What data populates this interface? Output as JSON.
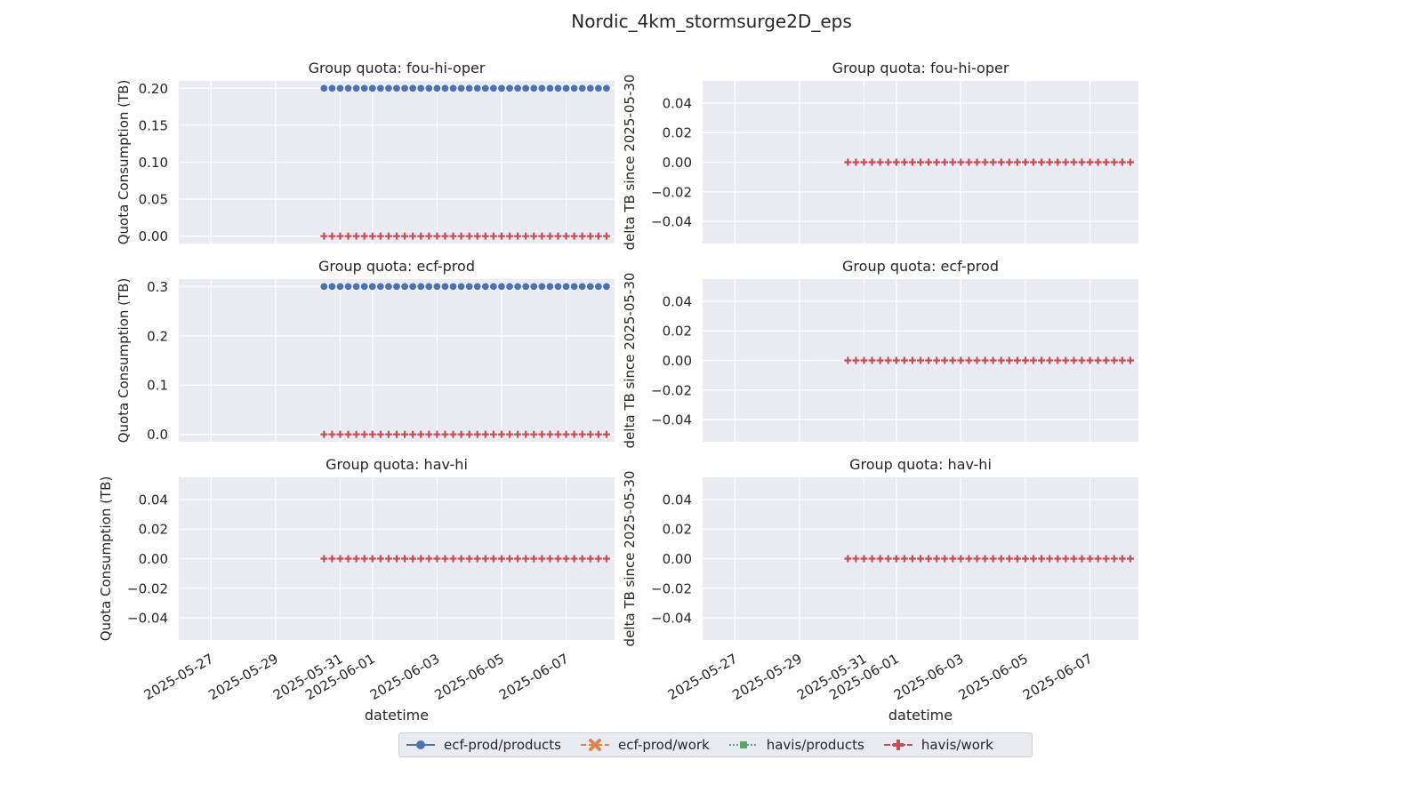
{
  "figure_title": "Nordic_4km_stormsurge2D_eps",
  "legend": {
    "items": [
      {
        "label": "ecf-prod/products",
        "color": "#4c72b0",
        "marker": "circle",
        "dash": "solid"
      },
      {
        "label": "ecf-prod/work",
        "color": "#dd8452",
        "marker": "x",
        "dash": "dashed"
      },
      {
        "label": "havis/products",
        "color": "#55a868",
        "marker": "square",
        "dash": "dotted"
      },
      {
        "label": "havis/work",
        "color": "#c44e52",
        "marker": "plus",
        "dash": "dashdot"
      }
    ]
  },
  "chart_data": [
    {
      "type": "scatter",
      "title": "Group quota: fou-hi-oper",
      "xlabel": "",
      "ylabel": "Quota Consumption (TB)",
      "xlim": [
        "2025-05-26",
        "2025-06-08 12:00"
      ],
      "ylim": [
        -0.01,
        0.21
      ],
      "yticks": [
        "0.00",
        "0.05",
        "0.10",
        "0.15",
        "0.20"
      ],
      "ytick_values": [
        0.0,
        0.05,
        0.1,
        0.15,
        0.2
      ],
      "xtick_labels": [],
      "grid": true,
      "series": [
        {
          "name": "ecf-prod/products",
          "x_start": "2025-05-30 12:00",
          "x_end": "2025-06-08 06:00",
          "n_points": 36,
          "value": 0.2
        },
        {
          "name": "havis/work",
          "x_start": "2025-05-30 12:00",
          "x_end": "2025-06-08 06:00",
          "n_points": 36,
          "value": 0.0
        }
      ]
    },
    {
      "type": "scatter",
      "title": "Group quota: fou-hi-oper",
      "xlabel": "",
      "ylabel": "delta TB since 2025-05-30",
      "xlim": [
        "2025-05-26",
        "2025-06-08 12:00"
      ],
      "ylim": [
        -0.055,
        0.055
      ],
      "yticks": [
        "0.04",
        "0.02",
        "0.00",
        "−0.02",
        "−0.04"
      ],
      "ytick_values": [
        0.04,
        0.02,
        0.0,
        -0.02,
        -0.04
      ],
      "xtick_labels": [],
      "grid": true,
      "series": [
        {
          "name": "havis/work",
          "x_start": "2025-05-30 12:00",
          "x_end": "2025-06-08 06:00",
          "n_points": 36,
          "value": 0.0
        }
      ]
    },
    {
      "type": "scatter",
      "title": "Group quota: ecf-prod",
      "xlabel": "",
      "ylabel": "Quota Consumption (TB)",
      "xlim": [
        "2025-05-26",
        "2025-06-08 12:00"
      ],
      "ylim": [
        -0.015,
        0.315
      ],
      "yticks": [
        "0.0",
        "0.1",
        "0.2",
        "0.3"
      ],
      "ytick_values": [
        0.0,
        0.1,
        0.2,
        0.3
      ],
      "xtick_labels": [],
      "grid": true,
      "series": [
        {
          "name": "ecf-prod/products",
          "x_start": "2025-05-30 12:00",
          "x_end": "2025-06-08 06:00",
          "n_points": 36,
          "value": 0.3
        },
        {
          "name": "havis/work",
          "x_start": "2025-05-30 12:00",
          "x_end": "2025-06-08 06:00",
          "n_points": 36,
          "value": 0.0
        }
      ]
    },
    {
      "type": "scatter",
      "title": "Group quota: ecf-prod",
      "xlabel": "",
      "ylabel": "delta TB since 2025-05-30",
      "xlim": [
        "2025-05-26",
        "2025-06-08 12:00"
      ],
      "ylim": [
        -0.055,
        0.055
      ],
      "yticks": [
        "0.04",
        "0.02",
        "0.00",
        "−0.02",
        "−0.04"
      ],
      "ytick_values": [
        0.04,
        0.02,
        0.0,
        -0.02,
        -0.04
      ],
      "xtick_labels": [],
      "grid": true,
      "series": [
        {
          "name": "havis/work",
          "x_start": "2025-05-30 12:00",
          "x_end": "2025-06-08 06:00",
          "n_points": 36,
          "value": 0.0
        }
      ]
    },
    {
      "type": "scatter",
      "title": "Group quota: hav-hi",
      "xlabel": "datetime",
      "ylabel": "Quota Consumption (TB)",
      "xlim": [
        "2025-05-26",
        "2025-06-08 12:00"
      ],
      "ylim": [
        -0.055,
        0.055
      ],
      "yticks": [
        "0.04",
        "0.02",
        "0.00",
        "−0.02",
        "−0.04"
      ],
      "ytick_values": [
        0.04,
        0.02,
        0.0,
        -0.02,
        -0.04
      ],
      "xtick_labels": [
        "2025-05-27",
        "2025-05-29",
        "2025-05-31",
        "2025-06-01",
        "2025-06-03",
        "2025-06-05",
        "2025-06-07"
      ],
      "xtick_dates": [
        "2025-05-27",
        "2025-05-29",
        "2025-05-31",
        "2025-06-01",
        "2025-06-03",
        "2025-06-05",
        "2025-06-07"
      ],
      "grid": true,
      "series": [
        {
          "name": "havis/work",
          "x_start": "2025-05-30 12:00",
          "x_end": "2025-06-08 06:00",
          "n_points": 36,
          "value": 0.0
        }
      ]
    },
    {
      "type": "scatter",
      "title": "Group quota: hav-hi",
      "xlabel": "datetime",
      "ylabel": "delta TB since 2025-05-30",
      "xlim": [
        "2025-05-26",
        "2025-06-08 12:00"
      ],
      "ylim": [
        -0.055,
        0.055
      ],
      "yticks": [
        "0.04",
        "0.02",
        "0.00",
        "−0.02",
        "−0.04"
      ],
      "ytick_values": [
        0.04,
        0.02,
        0.0,
        -0.02,
        -0.04
      ],
      "xtick_labels": [
        "2025-05-27",
        "2025-05-29",
        "2025-05-31",
        "2025-06-01",
        "2025-06-03",
        "2025-06-05",
        "2025-06-07"
      ],
      "xtick_dates": [
        "2025-05-27",
        "2025-05-29",
        "2025-05-31",
        "2025-06-01",
        "2025-06-03",
        "2025-06-05",
        "2025-06-07"
      ],
      "grid": true,
      "series": [
        {
          "name": "havis/work",
          "x_start": "2025-05-30 12:00",
          "x_end": "2025-06-08 06:00",
          "n_points": 36,
          "value": 0.0
        }
      ]
    }
  ]
}
